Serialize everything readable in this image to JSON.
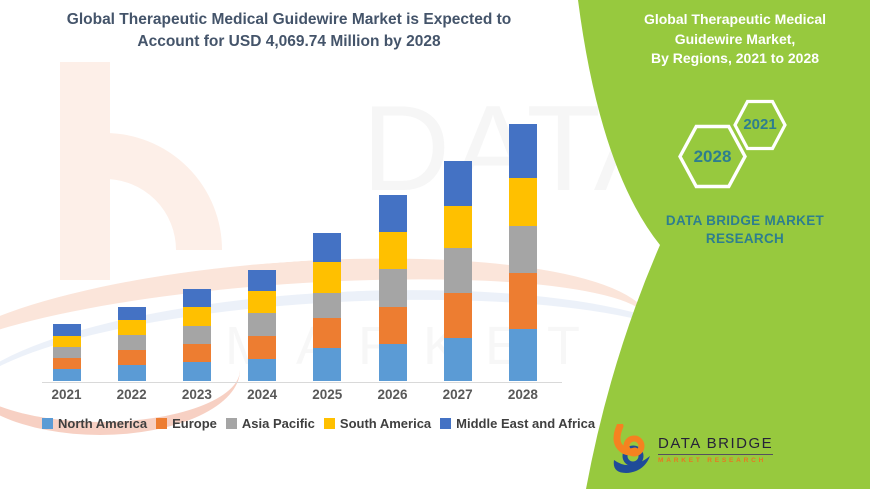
{
  "palette": {
    "panel_green": "#97C93E",
    "header_text": "#44546A",
    "teal_accent": "#2E7E8E",
    "axis_line": "#D9D9D9",
    "x_label_text": "#595959",
    "legend_text": "#3F3F3F",
    "logo_orange": "#F58220",
    "logo_blue": "#1F4B99",
    "logo_name_text": "#262238"
  },
  "header": {
    "line1": "Global Therapeutic Medical Guidewire Market is Expected to",
    "line2": "Account for USD 4,069.74 Million by 2028"
  },
  "side_panel": {
    "background": "#97C93E",
    "title_lines": [
      "Global Therapeutic Medical",
      "Guidewire Market,",
      "By Regions, 2021 to 2028"
    ],
    "hexagons": [
      {
        "label": "2028"
      },
      {
        "label": "2021"
      }
    ],
    "brand_line1": "DATA BRIDGE MARKET",
    "brand_line2": "RESEARCH"
  },
  "logo": {
    "title": "DATA BRIDGE",
    "subtitle": "MARKET RESEARCH"
  },
  "chart_data": {
    "type": "bar",
    "stacked": true,
    "title": "Global Therapeutic Medical Guidewire Market, By Regions, 2021 to 2028",
    "annotation": "Expected to account for USD 4,069.74 Million by 2028",
    "unit": "USD Million",
    "note": "segment values estimated from bar heights; 2028 total anchored to 4,069.74",
    "categories": [
      "2021",
      "2022",
      "2023",
      "2024",
      "2025",
      "2026",
      "2027",
      "2028"
    ],
    "series": [
      {
        "name": "North America",
        "color": "#5B9BD5",
        "values": [
          190,
          249,
          306,
          353,
          518,
          581,
          686,
          819
        ]
      },
      {
        "name": "Europe",
        "color": "#ED7D31",
        "values": [
          174,
          238,
          280,
          360,
          475,
          586,
          713,
          887
        ]
      },
      {
        "name": "Asia Pacific",
        "color": "#A5A5A5",
        "values": [
          174,
          238,
          285,
          360,
          406,
          602,
          703,
          749
        ]
      },
      {
        "name": "South America",
        "color": "#FFC000",
        "values": [
          174,
          238,
          306,
          353,
          481,
          586,
          670,
          765
        ]
      },
      {
        "name": "Middle East and Africa",
        "color": "#4472C4",
        "values": [
          190,
          215,
          276,
          333,
          459,
          591,
          713,
          850
        ]
      }
    ],
    "totals": [
      902,
      1178,
      1453,
      1759,
      2339,
      2946,
      3485,
      4070
    ],
    "xlabel": "",
    "ylabel": "",
    "ylim": [
      0,
      4450
    ],
    "grid": false,
    "legend_position": "bottom"
  }
}
